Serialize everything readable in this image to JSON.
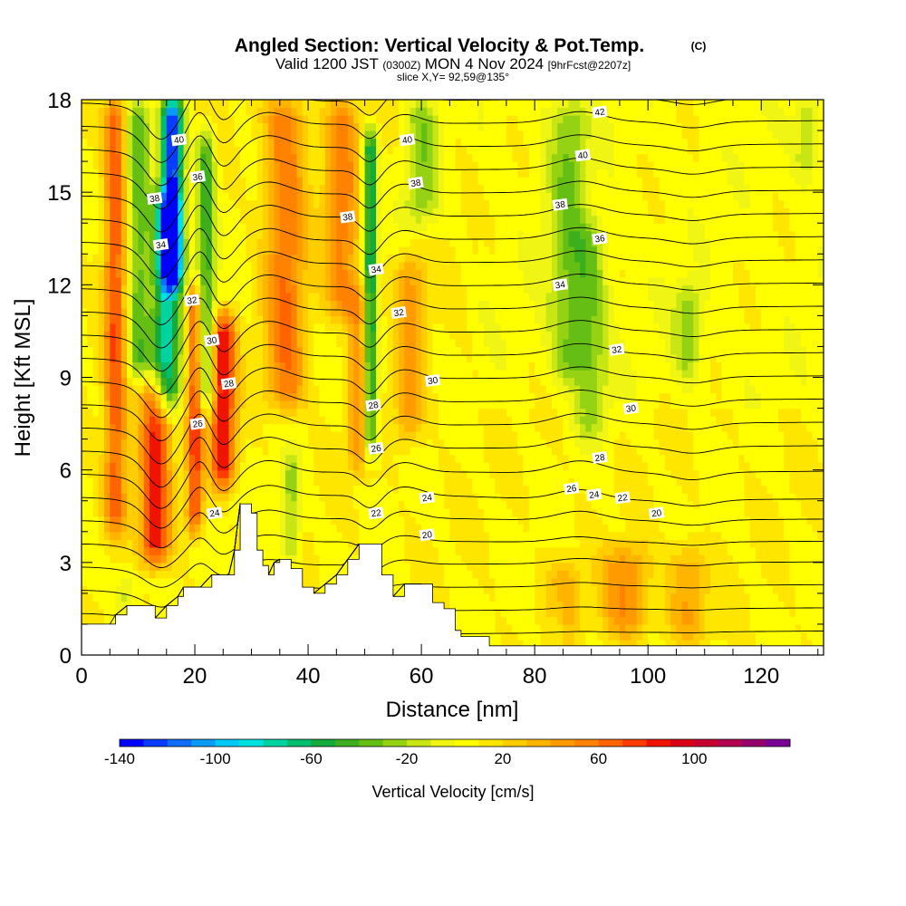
{
  "chart_data": {
    "type": "heatmap",
    "title": "Angled Section: Vertical Velocity & Pot.Temp.",
    "title_unit": "(C)",
    "subtitle": {
      "valid": "Valid 1200 JST",
      "utc": "(0300Z)",
      "date": "MON 4 Nov 2024",
      "fcst": "[9hrFcst@2207z]"
    },
    "slice_label": "slice X,Y= 92,59@135°",
    "xlabel": "Distance [nm]",
    "ylabel": "Height [Kft MSL]",
    "xlim": [
      0,
      131
    ],
    "ylim": [
      0,
      18
    ],
    "x_ticks": [
      "0",
      "20",
      "40",
      "60",
      "80",
      "100",
      "120"
    ],
    "x_tick_values": [
      0,
      20,
      40,
      60,
      80,
      100,
      120
    ],
    "y_ticks": [
      "0",
      "3",
      "6",
      "9",
      "12",
      "15",
      "18"
    ],
    "y_tick_values": [
      0,
      3,
      6,
      9,
      12,
      15,
      18
    ],
    "colorbar": {
      "title": "Vertical Velocity [cm/s]",
      "labels": [
        "-140",
        "-100",
        "-60",
        "-20",
        "20",
        "60",
        "100"
      ],
      "label_values": [
        -140,
        -100,
        -60,
        -20,
        20,
        60,
        100
      ],
      "min": -140,
      "max": 140,
      "step": 10,
      "colors": [
        "#0000ff",
        "#0a3cff",
        "#0f6ef5",
        "#0a9bf5",
        "#00c8f5",
        "#00e1e1",
        "#00d2a0",
        "#00be6e",
        "#14aa3c",
        "#3caf1e",
        "#64be14",
        "#96d214",
        "#c8e614",
        "#f0f514",
        "#ffff00",
        "#ffe600",
        "#ffcd00",
        "#ffb400",
        "#ff9b00",
        "#ff8200",
        "#ff6400",
        "#ff3c00",
        "#f01400",
        "#dc0014",
        "#c80032",
        "#b40050",
        "#96006e",
        "#780096"
      ]
    },
    "terrain_kft": [
      [
        0,
        1.0
      ],
      [
        5,
        1.0
      ],
      [
        6,
        1.3
      ],
      [
        8,
        1.6
      ],
      [
        11,
        1.6
      ],
      [
        13,
        1.2
      ],
      [
        15,
        1.6
      ],
      [
        17,
        1.9
      ],
      [
        18,
        2.2
      ],
      [
        21,
        2.2
      ],
      [
        23,
        2.6
      ],
      [
        26,
        2.6
      ],
      [
        27,
        3.4
      ],
      [
        28,
        4.9
      ],
      [
        30,
        4.6
      ],
      [
        31,
        3.4
      ],
      [
        32,
        2.9
      ],
      [
        33,
        2.6
      ],
      [
        34,
        3.0
      ],
      [
        35,
        3.1
      ],
      [
        37,
        2.8
      ],
      [
        39,
        2.2
      ],
      [
        41,
        2.0
      ],
      [
        43,
        2.3
      ],
      [
        45,
        2.6
      ],
      [
        47,
        3.1
      ],
      [
        49,
        3.6
      ],
      [
        52,
        3.6
      ],
      [
        53,
        2.6
      ],
      [
        55,
        1.9
      ],
      [
        57,
        2.3
      ],
      [
        60,
        2.3
      ],
      [
        62,
        1.7
      ],
      [
        64,
        1.5
      ],
      [
        66,
        0.8
      ],
      [
        67,
        0.6
      ],
      [
        70,
        0.6
      ],
      [
        72,
        0.3
      ],
      [
        131,
        0.3
      ]
    ],
    "updraft_bands": [
      {
        "x": 6,
        "w": 2.0,
        "z0": 4.0,
        "z1": 18,
        "amp": 60
      },
      {
        "x": 13,
        "w": 2.6,
        "z0": 3.0,
        "z1": 9.0,
        "amp": 75
      },
      {
        "x": 20,
        "w": 1.4,
        "z0": 4.0,
        "z1": 12.0,
        "amp": 65
      },
      {
        "x": 25,
        "w": 2.2,
        "z0": 5.5,
        "z1": 11.0,
        "amp": 80
      },
      {
        "x": 36,
        "w": 3.5,
        "z0": 8.0,
        "z1": 18,
        "amp": 50
      },
      {
        "x": 46,
        "w": 3.0,
        "z0": 11.0,
        "z1": 18,
        "amp": 45
      },
      {
        "x": 49,
        "w": 2.0,
        "z0": 6.0,
        "z1": 12.0,
        "amp": 40
      },
      {
        "x": 58,
        "w": 2.5,
        "z0": 7.0,
        "z1": 13.0,
        "amp": 35
      },
      {
        "x": 96,
        "w": 4.0,
        "z0": 0.6,
        "z1": 3.5,
        "amp": 42
      },
      {
        "x": 107,
        "w": 3.5,
        "z0": 0.6,
        "z1": 3.5,
        "amp": 32
      },
      {
        "x": 85,
        "w": 3.0,
        "z0": 0.6,
        "z1": 3.0,
        "amp": 30
      }
    ],
    "downdraft_bands": [
      {
        "x": 16,
        "w": 1.8,
        "z0": 12.0,
        "z1": 18,
        "amp": -145
      },
      {
        "x": 15,
        "w": 2.5,
        "z0": 8.0,
        "z1": 15.0,
        "amp": -85
      },
      {
        "x": 10,
        "w": 2.2,
        "z0": 9.0,
        "z1": 18,
        "amp": -45
      },
      {
        "x": 22,
        "w": 1.6,
        "z0": 8.0,
        "z1": 17.0,
        "amp": -55
      },
      {
        "x": 51,
        "w": 1.2,
        "z0": 6.5,
        "z1": 17.0,
        "amp": -75
      },
      {
        "x": 60,
        "w": 3.0,
        "z0": 14.0,
        "z1": 18,
        "amp": -35
      },
      {
        "x": 86,
        "w": 3.5,
        "z0": 9.0,
        "z1": 18,
        "amp": -35
      },
      {
        "x": 90,
        "w": 3.0,
        "z0": 7.0,
        "z1": 14.0,
        "amp": -30
      },
      {
        "x": 107,
        "w": 2.5,
        "z0": 9.0,
        "z1": 12.0,
        "amp": -30
      },
      {
        "x": 37,
        "w": 1.6,
        "z0": 3.0,
        "z1": 6.5,
        "amp": -35
      },
      {
        "x": 8,
        "w": 2.0,
        "z0": 1.2,
        "z1": 2.8,
        "amp": -25
      },
      {
        "x": 84,
        "w": 1.5,
        "z0": 0.3,
        "z1": 2.0,
        "amp": -20
      },
      {
        "x": 128,
        "w": 2.0,
        "z0": 15.5,
        "z1": 18,
        "amp": -25
      }
    ],
    "isentrope_levels_c": [
      20,
      21,
      22,
      23,
      24,
      25,
      26,
      27,
      28,
      29,
      30,
      31,
      32,
      33,
      34,
      35,
      36,
      37,
      38,
      39,
      40,
      41,
      42,
      43
    ],
    "isentrope_labels": [
      {
        "text": "40",
        "x": 17.2,
        "z": 16.7
      },
      {
        "text": "38",
        "x": 12.9,
        "z": 14.8
      },
      {
        "text": "36",
        "x": 20.5,
        "z": 15.5
      },
      {
        "text": "34",
        "x": 14.0,
        "z": 13.3
      },
      {
        "text": "32",
        "x": 19.5,
        "z": 11.5
      },
      {
        "text": "30",
        "x": 23.0,
        "z": 10.2
      },
      {
        "text": "28",
        "x": 26.0,
        "z": 8.8
      },
      {
        "text": "26",
        "x": 20.5,
        "z": 7.5
      },
      {
        "text": "24",
        "x": 23.5,
        "z": 4.6
      },
      {
        "text": "38",
        "x": 47.0,
        "z": 14.2
      },
      {
        "text": "40",
        "x": 57.5,
        "z": 16.7
      },
      {
        "text": "38",
        "x": 59.0,
        "z": 15.3
      },
      {
        "text": "34",
        "x": 52.0,
        "z": 12.5
      },
      {
        "text": "32",
        "x": 56.0,
        "z": 11.1
      },
      {
        "text": "30",
        "x": 62.0,
        "z": 8.9
      },
      {
        "text": "28",
        "x": 51.5,
        "z": 8.1
      },
      {
        "text": "26",
        "x": 52.0,
        "z": 6.7
      },
      {
        "text": "24",
        "x": 61.0,
        "z": 5.1
      },
      {
        "text": "22",
        "x": 52.0,
        "z": 4.6
      },
      {
        "text": "20",
        "x": 61.0,
        "z": 3.9
      },
      {
        "text": "42",
        "x": 91.5,
        "z": 17.6
      },
      {
        "text": "40",
        "x": 88.5,
        "z": 16.2
      },
      {
        "text": "38",
        "x": 84.5,
        "z": 14.6
      },
      {
        "text": "36",
        "x": 91.5,
        "z": 13.5
      },
      {
        "text": "34",
        "x": 84.5,
        "z": 12.0
      },
      {
        "text": "32",
        "x": 94.5,
        "z": 9.9
      },
      {
        "text": "30",
        "x": 97.0,
        "z": 8.0
      },
      {
        "text": "28",
        "x": 91.5,
        "z": 6.4
      },
      {
        "text": "26",
        "x": 86.5,
        "z": 5.4
      },
      {
        "text": "24",
        "x": 90.5,
        "z": 5.2
      },
      {
        "text": "22",
        "x": 95.5,
        "z": 5.1
      },
      {
        "text": "20",
        "x": 101.5,
        "z": 4.6
      }
    ]
  }
}
